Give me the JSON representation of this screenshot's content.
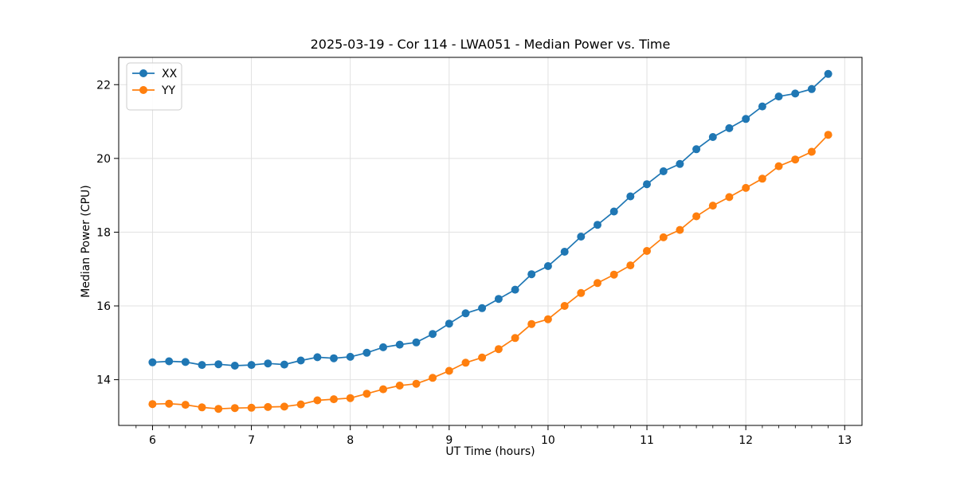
{
  "chart_data": {
    "type": "line",
    "title": "2025-03-19 - Cor 114 - LWA051 - Median Power vs. Time",
    "xlabel": "UT Time (hours)",
    "ylabel": "Median Power (CPU)",
    "xlim": [
      5.658,
      13.175
    ],
    "ylim": [
      12.76,
      22.74
    ],
    "xticks": [
      6,
      7,
      8,
      9,
      10,
      11,
      12,
      13
    ],
    "yticks": [
      14,
      16,
      18,
      20,
      22
    ],
    "x_minor_tick_step": 0.16667,
    "grid": true,
    "legend_position": "upper left",
    "marker": "circle",
    "x": [
      6.0,
      6.167,
      6.333,
      6.5,
      6.667,
      6.833,
      7.0,
      7.167,
      7.333,
      7.5,
      7.667,
      7.833,
      8.0,
      8.167,
      8.333,
      8.5,
      8.667,
      8.833,
      9.0,
      9.167,
      9.333,
      9.5,
      9.667,
      9.833,
      10.0,
      10.167,
      10.333,
      10.5,
      10.667,
      10.833,
      11.0,
      11.167,
      11.333,
      11.5,
      11.667,
      11.833,
      12.0,
      12.167,
      12.333,
      12.5,
      12.667,
      12.833
    ],
    "series": [
      {
        "name": "XX",
        "color": "#1f77b4",
        "values": [
          14.47,
          14.5,
          14.48,
          14.4,
          14.42,
          14.38,
          14.4,
          14.44,
          14.41,
          14.52,
          14.61,
          14.58,
          14.62,
          14.73,
          14.88,
          14.95,
          15.01,
          15.24,
          15.52,
          15.8,
          15.94,
          16.19,
          16.44,
          16.86,
          17.08,
          17.47,
          17.88,
          18.2,
          18.56,
          18.97,
          19.3,
          19.65,
          19.85,
          20.25,
          20.58,
          20.82,
          21.07,
          21.41,
          21.68,
          21.76,
          21.88,
          22.29
        ]
      },
      {
        "name": "YY",
        "color": "#ff7f0e",
        "values": [
          13.34,
          13.35,
          13.32,
          13.25,
          13.21,
          13.23,
          13.24,
          13.26,
          13.27,
          13.33,
          13.44,
          13.47,
          13.5,
          13.62,
          13.74,
          13.84,
          13.89,
          14.05,
          14.24,
          14.46,
          14.6,
          14.83,
          15.13,
          15.51,
          15.64,
          16.0,
          16.35,
          16.62,
          16.85,
          17.1,
          17.49,
          17.86,
          18.06,
          18.43,
          18.72,
          18.95,
          19.2,
          19.45,
          19.79,
          19.97,
          20.18,
          20.64
        ]
      }
    ],
    "colors": {
      "background": "#ffffff",
      "grid": "#e1e1e1",
      "spine": "#000000",
      "tick": "#000000",
      "text": "#000000",
      "legend_border": "#cccccc",
      "legend_background": "#ffffff"
    }
  }
}
